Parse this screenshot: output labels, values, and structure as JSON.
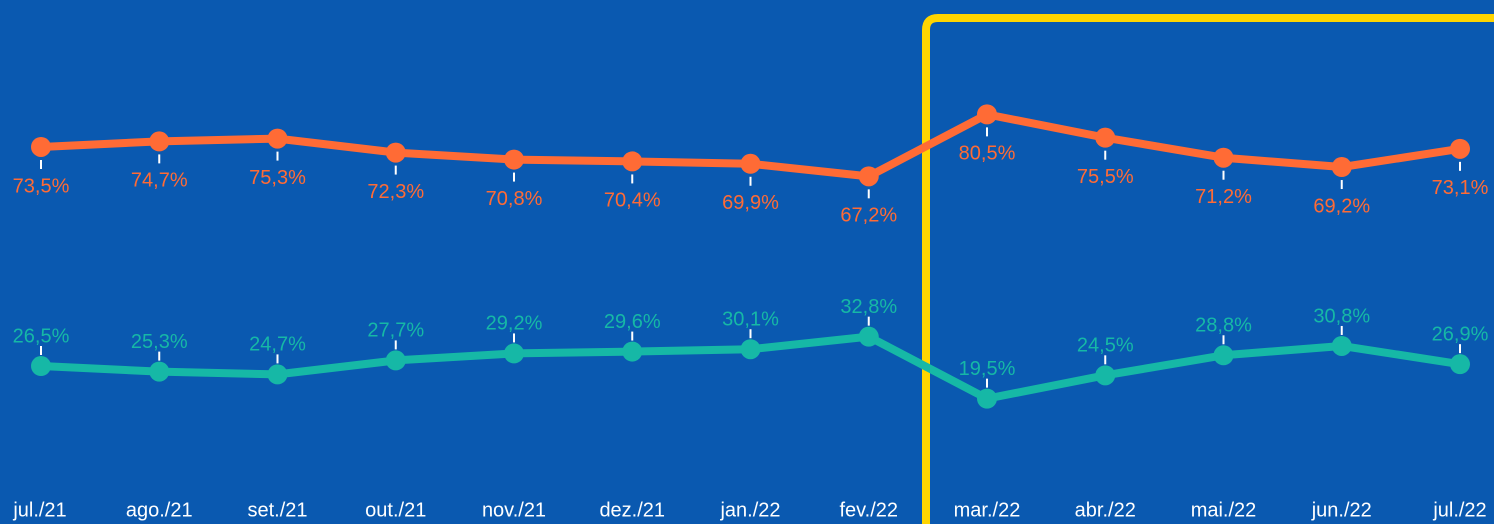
{
  "chart_data": {
    "type": "line",
    "categories": [
      "jul./21",
      "ago./21",
      "set./21",
      "out./21",
      "nov./21",
      "dez./21",
      "jan./22",
      "fev./22",
      "mar./22",
      "abr./22",
      "mai./22",
      "jun./22",
      "jul./22"
    ],
    "series": [
      {
        "color": "#ff6b35",
        "values": [
          73.5,
          74.7,
          75.3,
          72.3,
          70.8,
          70.4,
          69.9,
          67.2,
          80.5,
          75.5,
          71.2,
          69.2,
          73.1
        ],
        "value_labels": [
          "73,5%",
          "74,7%",
          "75,3%",
          "72,3%",
          "70,8%",
          "70,4%",
          "69,9%",
          "67,2%",
          "80,5%",
          "75,5%",
          "71,2%",
          "69,2%",
          "73,1%"
        ]
      },
      {
        "color": "#16b8a6",
        "values": [
          26.5,
          25.3,
          24.7,
          27.7,
          29.2,
          29.6,
          30.1,
          32.8,
          19.5,
          24.5,
          28.8,
          30.8,
          26.9
        ],
        "value_labels": [
          "26,5%",
          "25,3%",
          "24,7%",
          "27,7%",
          "29,2%",
          "29,6%",
          "30,1%",
          "32,8%",
          "19,5%",
          "24,5%",
          "28,8%",
          "30,8%",
          "26,9%"
        ]
      }
    ]
  }
}
